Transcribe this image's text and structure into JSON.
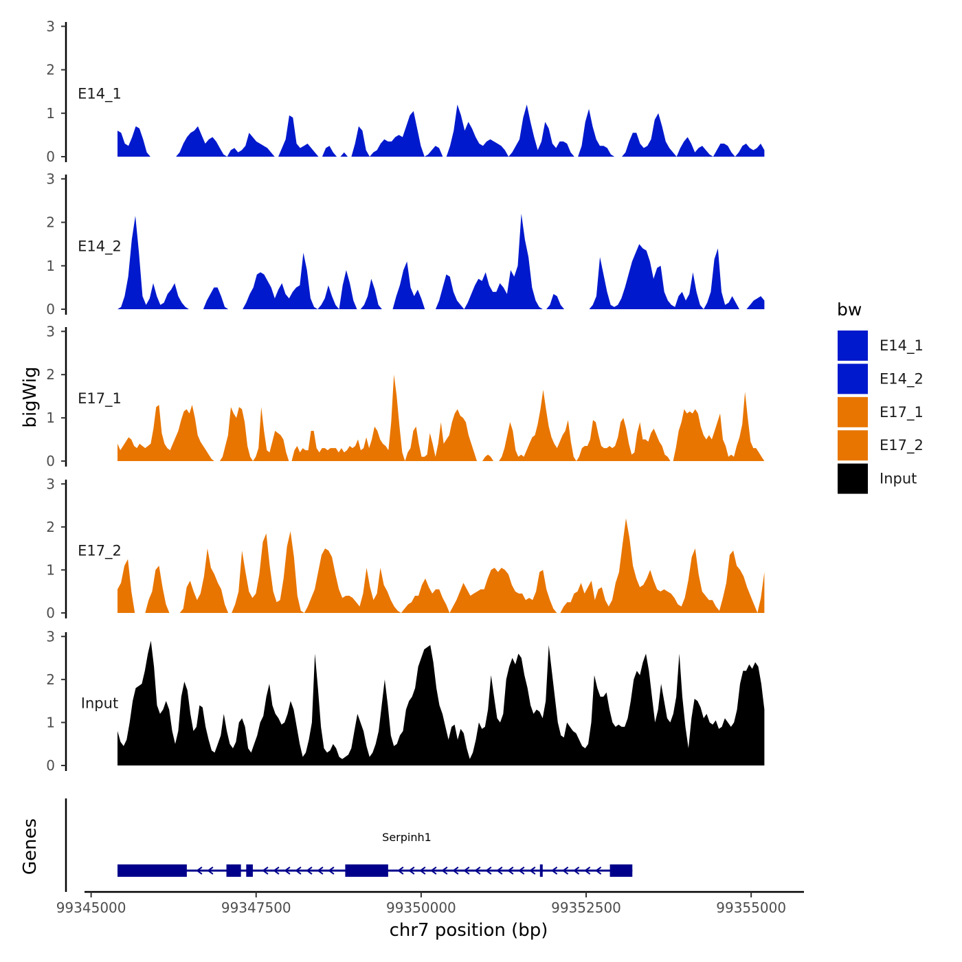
{
  "chart_data": {
    "type": "area",
    "ylabel": "bigWig",
    "xlabel": "chr7 position (bp)",
    "genes_label": "Genes",
    "legend_title": "bw",
    "xlim": [
      99344900,
      99355800
    ],
    "x_ticks": [
      99345000,
      99347500,
      99350000,
      99352500,
      99355000
    ],
    "x_tick_labels": [
      "99345000",
      "99347500",
      "99350000",
      "99352500",
      "99355000"
    ],
    "ylim": [
      0,
      3.1
    ],
    "y_ticks": [
      0,
      1,
      2,
      3
    ],
    "y_tick_labels": [
      "0",
      "1",
      "2",
      "3"
    ],
    "x_start": 99345400,
    "x_end": 99355200,
    "colors": {
      "E14_1": "#0019CC",
      "E14_2": "#0019CC",
      "E17_1": "#E87500",
      "E17_2": "#E87500",
      "Input": "#000000",
      "gene": "#00008B"
    },
    "legend": [
      {
        "name": "E14_1",
        "color": "#0019CC"
      },
      {
        "name": "E14_2",
        "color": "#0019CC"
      },
      {
        "name": "E17_1",
        "color": "#E87500"
      },
      {
        "name": "E17_2",
        "color": "#E87500"
      },
      {
        "name": "Input",
        "color": "#000000"
      }
    ],
    "series": [
      {
        "name": "E14_1",
        "color": "#0019CC",
        "values": [
          0.6,
          0.55,
          0.3,
          0.25,
          0.45,
          0.7,
          0.65,
          0.4,
          0.1,
          0,
          0,
          0,
          0,
          0,
          0,
          0,
          0,
          0.1,
          0.3,
          0.45,
          0.55,
          0.6,
          0.7,
          0.5,
          0.3,
          0.4,
          0.45,
          0.35,
          0.2,
          0.05,
          0,
          0.15,
          0.2,
          0.1,
          0.15,
          0.25,
          0.55,
          0.45,
          0.35,
          0.3,
          0.25,
          0.2,
          0.1,
          0,
          0,
          0.2,
          0.4,
          0.95,
          0.9,
          0.3,
          0.2,
          0.25,
          0.3,
          0.2,
          0.1,
          0,
          0,
          0.2,
          0.25,
          0.1,
          0,
          0,
          0.1,
          0,
          0,
          0.3,
          0.7,
          0.6,
          0.15,
          0,
          0.1,
          0.15,
          0.3,
          0.4,
          0.35,
          0.35,
          0.45,
          0.5,
          0.45,
          0.7,
          0.95,
          1.05,
          0.65,
          0.25,
          0,
          0.05,
          0.15,
          0.25,
          0.2,
          0,
          0,
          0.25,
          0.6,
          1.2,
          0.95,
          0.6,
          0.8,
          0.65,
          0.45,
          0.3,
          0.25,
          0.35,
          0.4,
          0.35,
          0.3,
          0.25,
          0.15,
          0,
          0.1,
          0.25,
          0.4,
          0.9,
          1.2,
          0.8,
          0.45,
          0.15,
          0.35,
          0.8,
          0.65,
          0.3,
          0.2,
          0.35,
          0.35,
          0.3,
          0.1,
          0,
          0,
          0.25,
          0.8,
          1.1,
          0.7,
          0.4,
          0.25,
          0.25,
          0.2,
          0.05,
          0,
          0,
          0,
          0.1,
          0.35,
          0.55,
          0.55,
          0.3,
          0.2,
          0.25,
          0.4,
          0.85,
          1.0,
          0.7,
          0.35,
          0.2,
          0.1,
          0,
          0.2,
          0.35,
          0.45,
          0.3,
          0.1,
          0.2,
          0.25,
          0.15,
          0.05,
          0,
          0.15,
          0.3,
          0.3,
          0.25,
          0.1,
          0,
          0.1,
          0.25,
          0.3,
          0.2,
          0.15,
          0.2,
          0.3,
          0.15
        ]
      },
      {
        "name": "E14_2",
        "color": "#0019CC",
        "values": [
          0,
          0.05,
          0.3,
          0.75,
          1.6,
          2.15,
          1.3,
          0.3,
          0.1,
          0.25,
          0.6,
          0.3,
          0.1,
          0.15,
          0.35,
          0.45,
          0.6,
          0.3,
          0.15,
          0.05,
          0,
          0,
          0,
          0,
          0,
          0.2,
          0.35,
          0.5,
          0.5,
          0.3,
          0.05,
          0,
          0,
          0,
          0,
          0,
          0.15,
          0.35,
          0.5,
          0.8,
          0.85,
          0.8,
          0.65,
          0.5,
          0.25,
          0.45,
          0.6,
          0.35,
          0.25,
          0.4,
          0.5,
          0.55,
          1.3,
          0.9,
          0.25,
          0.05,
          0,
          0.1,
          0.25,
          0.55,
          0.3,
          0.1,
          0,
          0.55,
          0.9,
          0.6,
          0.2,
          0,
          0,
          0.1,
          0.3,
          0.7,
          0.45,
          0.1,
          0,
          0,
          0,
          0,
          0.3,
          0.55,
          0.9,
          1.1,
          0.5,
          0.3,
          0.45,
          0.25,
          0,
          0,
          0,
          0,
          0.2,
          0.5,
          0.8,
          0.75,
          0.4,
          0.2,
          0.1,
          0,
          0.15,
          0.35,
          0.55,
          0.7,
          0.65,
          0.85,
          0.55,
          0.4,
          0.4,
          0.6,
          0.5,
          0.35,
          0.9,
          0.75,
          1.0,
          2.2,
          1.6,
          1.2,
          0.5,
          0.2,
          0.05,
          0,
          0,
          0.1,
          0.35,
          0.3,
          0.1,
          0,
          0,
          0,
          0,
          0,
          0,
          0,
          0,
          0.1,
          0.3,
          1.2,
          0.8,
          0.4,
          0.1,
          0.05,
          0.1,
          0.25,
          0.5,
          0.8,
          1.1,
          1.3,
          1.5,
          1.4,
          1.35,
          1.1,
          0.7,
          0.95,
          1.0,
          0.4,
          0.2,
          0.1,
          0.05,
          0.3,
          0.4,
          0.2,
          0.35,
          0.85,
          0.4,
          0.1,
          0,
          0.15,
          0.4,
          1.15,
          1.4,
          0.4,
          0.1,
          0.15,
          0.3,
          0.15,
          0,
          0,
          0,
          0.1,
          0.2,
          0.25,
          0.3,
          0.2
        ]
      },
      {
        "name": "E17_1",
        "color": "#E87500",
        "values": [
          0.4,
          0.25,
          0.35,
          0.45,
          0.55,
          0.5,
          0.35,
          0.3,
          0.4,
          0.35,
          0.3,
          0.35,
          0.4,
          0.75,
          1.25,
          1.3,
          0.65,
          0.4,
          0.3,
          0.25,
          0.4,
          0.55,
          0.7,
          0.95,
          1.15,
          1.2,
          1.1,
          1.3,
          1.0,
          0.6,
          0.45,
          0.35,
          0.25,
          0.15,
          0.05,
          0,
          0,
          0,
          0.1,
          0.35,
          0.6,
          1.25,
          1.1,
          1.0,
          1.25,
          1.2,
          0.9,
          0.35,
          0.1,
          0,
          0.1,
          0.3,
          1.25,
          0.7,
          0.25,
          0.2,
          0.45,
          0.7,
          0.65,
          0.6,
          0.5,
          0.2,
          0,
          0,
          0.25,
          0.35,
          0.2,
          0.3,
          0.25,
          0.25,
          0.7,
          0.7,
          0.3,
          0.2,
          0.3,
          0.3,
          0.25,
          0.3,
          0.3,
          0.3,
          0.2,
          0.3,
          0.2,
          0.25,
          0.35,
          0.3,
          0.35,
          0.5,
          0.25,
          0.3,
          0.55,
          0.3,
          0.5,
          0.8,
          0.7,
          0.5,
          0.4,
          0.35,
          0.25,
          0.9,
          2.0,
          1.5,
          0.8,
          0.2,
          0,
          0.2,
          0.3,
          0.7,
          0.8,
          0.4,
          0.1,
          0.1,
          0.15,
          0.65,
          0.4,
          0.1,
          0.4,
          0.9,
          0.4,
          0.5,
          0.6,
          0.9,
          1.1,
          1.2,
          1.05,
          1.0,
          0.9,
          0.6,
          0.4,
          0.2,
          0,
          0,
          0,
          0.1,
          0.15,
          0.1,
          0,
          0,
          0,
          0.1,
          0.3,
          0.6,
          0.9,
          0.7,
          0.25,
          0.1,
          0.15,
          0.1,
          0.25,
          0.4,
          0.55,
          0.6,
          0.85,
          1.2,
          1.65,
          1.2,
          0.8,
          0.55,
          0.4,
          0.3,
          0.45,
          0.6,
          0.7,
          0.95,
          0.45,
          0.1,
          0,
          0.1,
          0.3,
          0.35,
          0.35,
          0.5,
          0.95,
          0.9,
          0.6,
          0.35,
          0.3,
          0.3,
          0.35,
          0.3,
          0.35,
          0.55,
          0.9,
          1.0,
          0.75,
          0.4,
          0.15,
          0.2,
          0.65,
          0.9,
          0.5,
          0.5,
          0.45,
          0.65,
          0.75,
          0.6,
          0.45,
          0.35,
          0.15,
          0.1,
          0,
          0,
          0.3,
          0.7,
          0.9,
          1.2,
          1.1,
          1.15,
          1.1,
          1.2,
          1.1,
          0.8,
          0.6,
          0.5,
          0.6,
          0.5,
          0.7,
          0.9,
          1.1,
          0.5,
          0.35,
          0.1,
          0.15,
          0.1,
          0.35,
          0.55,
          0.85,
          1.6,
          1.0,
          0.45,
          0.3,
          0.3,
          0.2,
          0.1,
          0
        ]
      },
      {
        "name": "E17_2",
        "color": "#E87500",
        "values": [
          0.55,
          0.7,
          1.1,
          1.25,
          0.5,
          0,
          0,
          0,
          0,
          0.3,
          0.5,
          1.0,
          1.1,
          0.6,
          0.2,
          0,
          0,
          0,
          0,
          0.1,
          0.6,
          0.75,
          0.5,
          0.3,
          0.45,
          0.85,
          1.5,
          1.05,
          0.9,
          0.7,
          0.55,
          0.2,
          0,
          0,
          0.2,
          0.5,
          1.45,
          0.95,
          0.5,
          0.35,
          0.45,
          0.9,
          1.65,
          1.85,
          1.1,
          0.5,
          0.25,
          0.3,
          0.8,
          1.55,
          1.9,
          1.3,
          0.4,
          0.05,
          0,
          0.15,
          0.35,
          0.55,
          0.95,
          1.35,
          1.5,
          1.45,
          1.3,
          0.9,
          0.55,
          0.35,
          0.4,
          0.4,
          0.35,
          0.25,
          0.15,
          0.45,
          1.05,
          0.6,
          0.3,
          0.45,
          1.05,
          0.65,
          0.5,
          0.3,
          0.15,
          0.05,
          0,
          0.1,
          0.2,
          0.25,
          0.4,
          0.4,
          0.65,
          0.8,
          0.6,
          0.45,
          0.55,
          0.55,
          0.35,
          0.2,
          0,
          0.15,
          0.3,
          0.5,
          0.7,
          0.55,
          0.4,
          0.45,
          0.5,
          0.55,
          0.55,
          0.8,
          1.0,
          1.05,
          0.95,
          1.05,
          1.0,
          0.9,
          0.65,
          0.5,
          0.45,
          0.45,
          0.3,
          0.35,
          0.3,
          0.5,
          0.95,
          1.0,
          0.55,
          0.3,
          0.1,
          0,
          0,
          0.15,
          0.25,
          0.25,
          0.45,
          0.5,
          0.7,
          0.45,
          0.6,
          0.75,
          0.3,
          0.55,
          0.6,
          0.3,
          0.15,
          0.3,
          0.7,
          0.95,
          1.6,
          2.2,
          1.75,
          1.1,
          0.8,
          0.6,
          0.65,
          0.8,
          1.0,
          0.75,
          0.55,
          0.5,
          0.55,
          0.5,
          0.45,
          0.35,
          0.2,
          0.15,
          0.35,
          0.75,
          1.3,
          1.5,
          0.9,
          0.5,
          0.4,
          0.3,
          0.3,
          0.15,
          0.05,
          0.35,
          0.7,
          1.35,
          1.45,
          1.1,
          1.0,
          0.85,
          0.6,
          0.4,
          0.2,
          0,
          0.35,
          0.95
        ]
      },
      {
        "name": "Input",
        "color": "#000000",
        "values": [
          0.8,
          0.55,
          0.45,
          0.6,
          1.0,
          1.5,
          1.8,
          1.85,
          1.9,
          2.2,
          2.6,
          2.9,
          2.3,
          1.4,
          1.2,
          1.3,
          1.5,
          1.3,
          0.8,
          0.5,
          0.8,
          1.6,
          1.95,
          1.75,
          1.2,
          0.8,
          0.9,
          1.4,
          1.35,
          0.9,
          0.6,
          0.35,
          0.3,
          0.5,
          0.7,
          1.2,
          0.8,
          0.5,
          0.4,
          0.55,
          1.0,
          1.1,
          0.9,
          0.4,
          0.3,
          0.5,
          0.7,
          1.0,
          1.15,
          1.6,
          1.9,
          1.4,
          1.2,
          1.1,
          0.95,
          1.0,
          1.2,
          1.5,
          1.3,
          0.9,
          0.5,
          0.2,
          0.3,
          0.6,
          1.0,
          2.6,
          1.8,
          0.9,
          0.4,
          0.3,
          0.35,
          0.5,
          0.4,
          0.2,
          0.15,
          0.2,
          0.25,
          0.4,
          0.8,
          1.2,
          1.0,
          0.8,
          0.45,
          0.2,
          0.3,
          0.5,
          0.8,
          1.4,
          2.0,
          1.4,
          0.7,
          0.45,
          0.5,
          0.7,
          0.8,
          1.3,
          1.5,
          1.6,
          1.8,
          2.3,
          2.5,
          2.7,
          2.75,
          2.8,
          2.4,
          1.8,
          1.4,
          1.2,
          0.9,
          0.6,
          0.9,
          0.95,
          0.6,
          0.85,
          0.75,
          0.4,
          0.15,
          0.3,
          0.6,
          1.0,
          0.85,
          0.9,
          1.3,
          2.1,
          1.6,
          1.1,
          1.0,
          1.2,
          2.0,
          2.3,
          2.5,
          2.35,
          2.6,
          2.5,
          2.1,
          1.8,
          1.4,
          1.2,
          1.3,
          1.25,
          1.1,
          1.5,
          2.8,
          2.2,
          1.6,
          1.0,
          0.7,
          0.65,
          1.0,
          0.9,
          0.8,
          0.75,
          0.6,
          0.45,
          0.4,
          0.5,
          1.0,
          2.1,
          1.8,
          1.6,
          1.6,
          1.7,
          1.3,
          1.0,
          0.9,
          0.95,
          0.9,
          0.9,
          1.1,
          1.5,
          2.0,
          2.2,
          2.1,
          2.4,
          2.6,
          2.2,
          1.6,
          1.0,
          1.3,
          1.9,
          1.5,
          1.1,
          1.0,
          1.2,
          1.6,
          2.6,
          1.6,
          0.9,
          0.4,
          1.1,
          1.55,
          1.5,
          1.35,
          1.1,
          1.2,
          1.0,
          0.95,
          1.05,
          0.85,
          0.9,
          1.1,
          1.0,
          0.9,
          1.0,
          1.3,
          1.9,
          2.2,
          2.2,
          2.35,
          2.25,
          2.4,
          2.3,
          1.9,
          1.3
        ]
      }
    ],
    "gene": {
      "name": "Serpinh1",
      "strand": "-",
      "start": 99345400,
      "end": 99353200,
      "exons": [
        [
          99345400,
          99346450
        ],
        [
          99347050,
          99347270
        ],
        [
          99347350,
          99347450
        ],
        [
          99348850,
          99349500
        ],
        [
          99351800,
          99351830
        ],
        [
          99352860,
          99353200
        ]
      ]
    }
  }
}
